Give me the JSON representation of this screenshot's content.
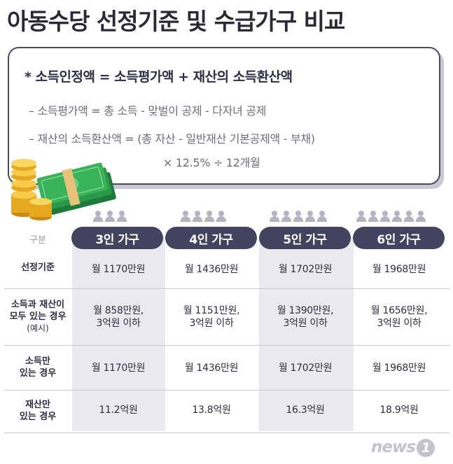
{
  "title": "아동수당 선정기준 및 수급가구 비교",
  "formula": {
    "main": "* 소득인정액 = 소득평가액 + 재산의 소득환산액",
    "line1": "– 소득평가액 = 총 소득 - 맞벌이 공제 - 다자녀 공제",
    "line2": "– 재산의 소득환산액 = (총 자산 - 일반재산 기본공제액 - 부채)",
    "line3": "× 12.5% ÷ 12개월"
  },
  "table": {
    "header_label": "구분",
    "columns": [
      "3인 가구",
      "4인 가구",
      "5인 가구",
      "6인 가구"
    ],
    "household_sizes": [
      3,
      4,
      5,
      6
    ],
    "rows": [
      {
        "label_lines": [
          "선정기준"
        ],
        "sub": "",
        "values": [
          [
            "월 1170만원"
          ],
          [
            "월 1436만원"
          ],
          [
            "월 1702만원"
          ],
          [
            "월 1968만원"
          ]
        ]
      },
      {
        "label_lines": [
          "소득과 재산이",
          "모두 있는 경우"
        ],
        "sub": "(예시)",
        "values": [
          [
            "월 858만원,",
            "3억원 이하"
          ],
          [
            "월 1151만원,",
            "3억원 이하"
          ],
          [
            "월 1390만원,",
            "3억원 이하"
          ],
          [
            "월 1656만원,",
            "3억원 이하"
          ]
        ]
      },
      {
        "label_lines": [
          "소득만",
          "있는 경우"
        ],
        "sub": "",
        "values": [
          [
            "월 1170만원"
          ],
          [
            "월 1436만원"
          ],
          [
            "월 1702만원"
          ],
          [
            "월 1968만원"
          ]
        ]
      },
      {
        "label_lines": [
          "재산만",
          "있는 경우"
        ],
        "sub": "",
        "values": [
          [
            "11.2억원"
          ],
          [
            "13.8억원"
          ],
          [
            "16.3억원"
          ],
          [
            "18.9억원"
          ]
        ]
      }
    ]
  },
  "logo": {
    "text": "news",
    "mark": "1"
  },
  "colors": {
    "pill": "#43435f",
    "column_shade": "#e9e9ef",
    "person_icon": "#b3b3c2"
  }
}
